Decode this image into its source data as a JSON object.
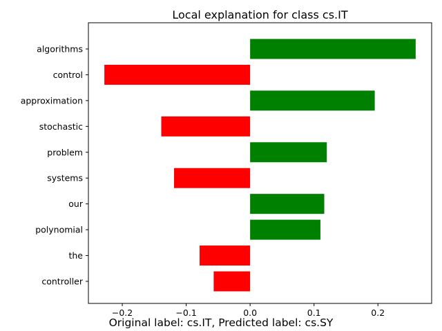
{
  "chart_data": {
    "type": "bar",
    "orientation": "horizontal",
    "title": "Local explanation for class cs.IT",
    "caption": "Original label: cs.IT, Predicted label: cs.SY",
    "categories": [
      "algorithms",
      "control",
      "approximation",
      "stochastic",
      "problem",
      "systems",
      "our",
      "polynomial",
      "the",
      "controller"
    ],
    "values": [
      0.259,
      -0.228,
      0.195,
      -0.139,
      0.12,
      -0.119,
      0.116,
      0.11,
      -0.079,
      -0.057
    ],
    "xlim": [
      -0.253,
      0.284
    ],
    "xticks": [
      -0.2,
      -0.1,
      0.0,
      0.1,
      0.2
    ],
    "xtick_labels": [
      "−0.2",
      "−0.1",
      "0.0",
      "0.1",
      "0.2"
    ],
    "colors": {
      "positive": "#008000",
      "negative": "#ff0000"
    },
    "grid": false,
    "legend": "none"
  }
}
